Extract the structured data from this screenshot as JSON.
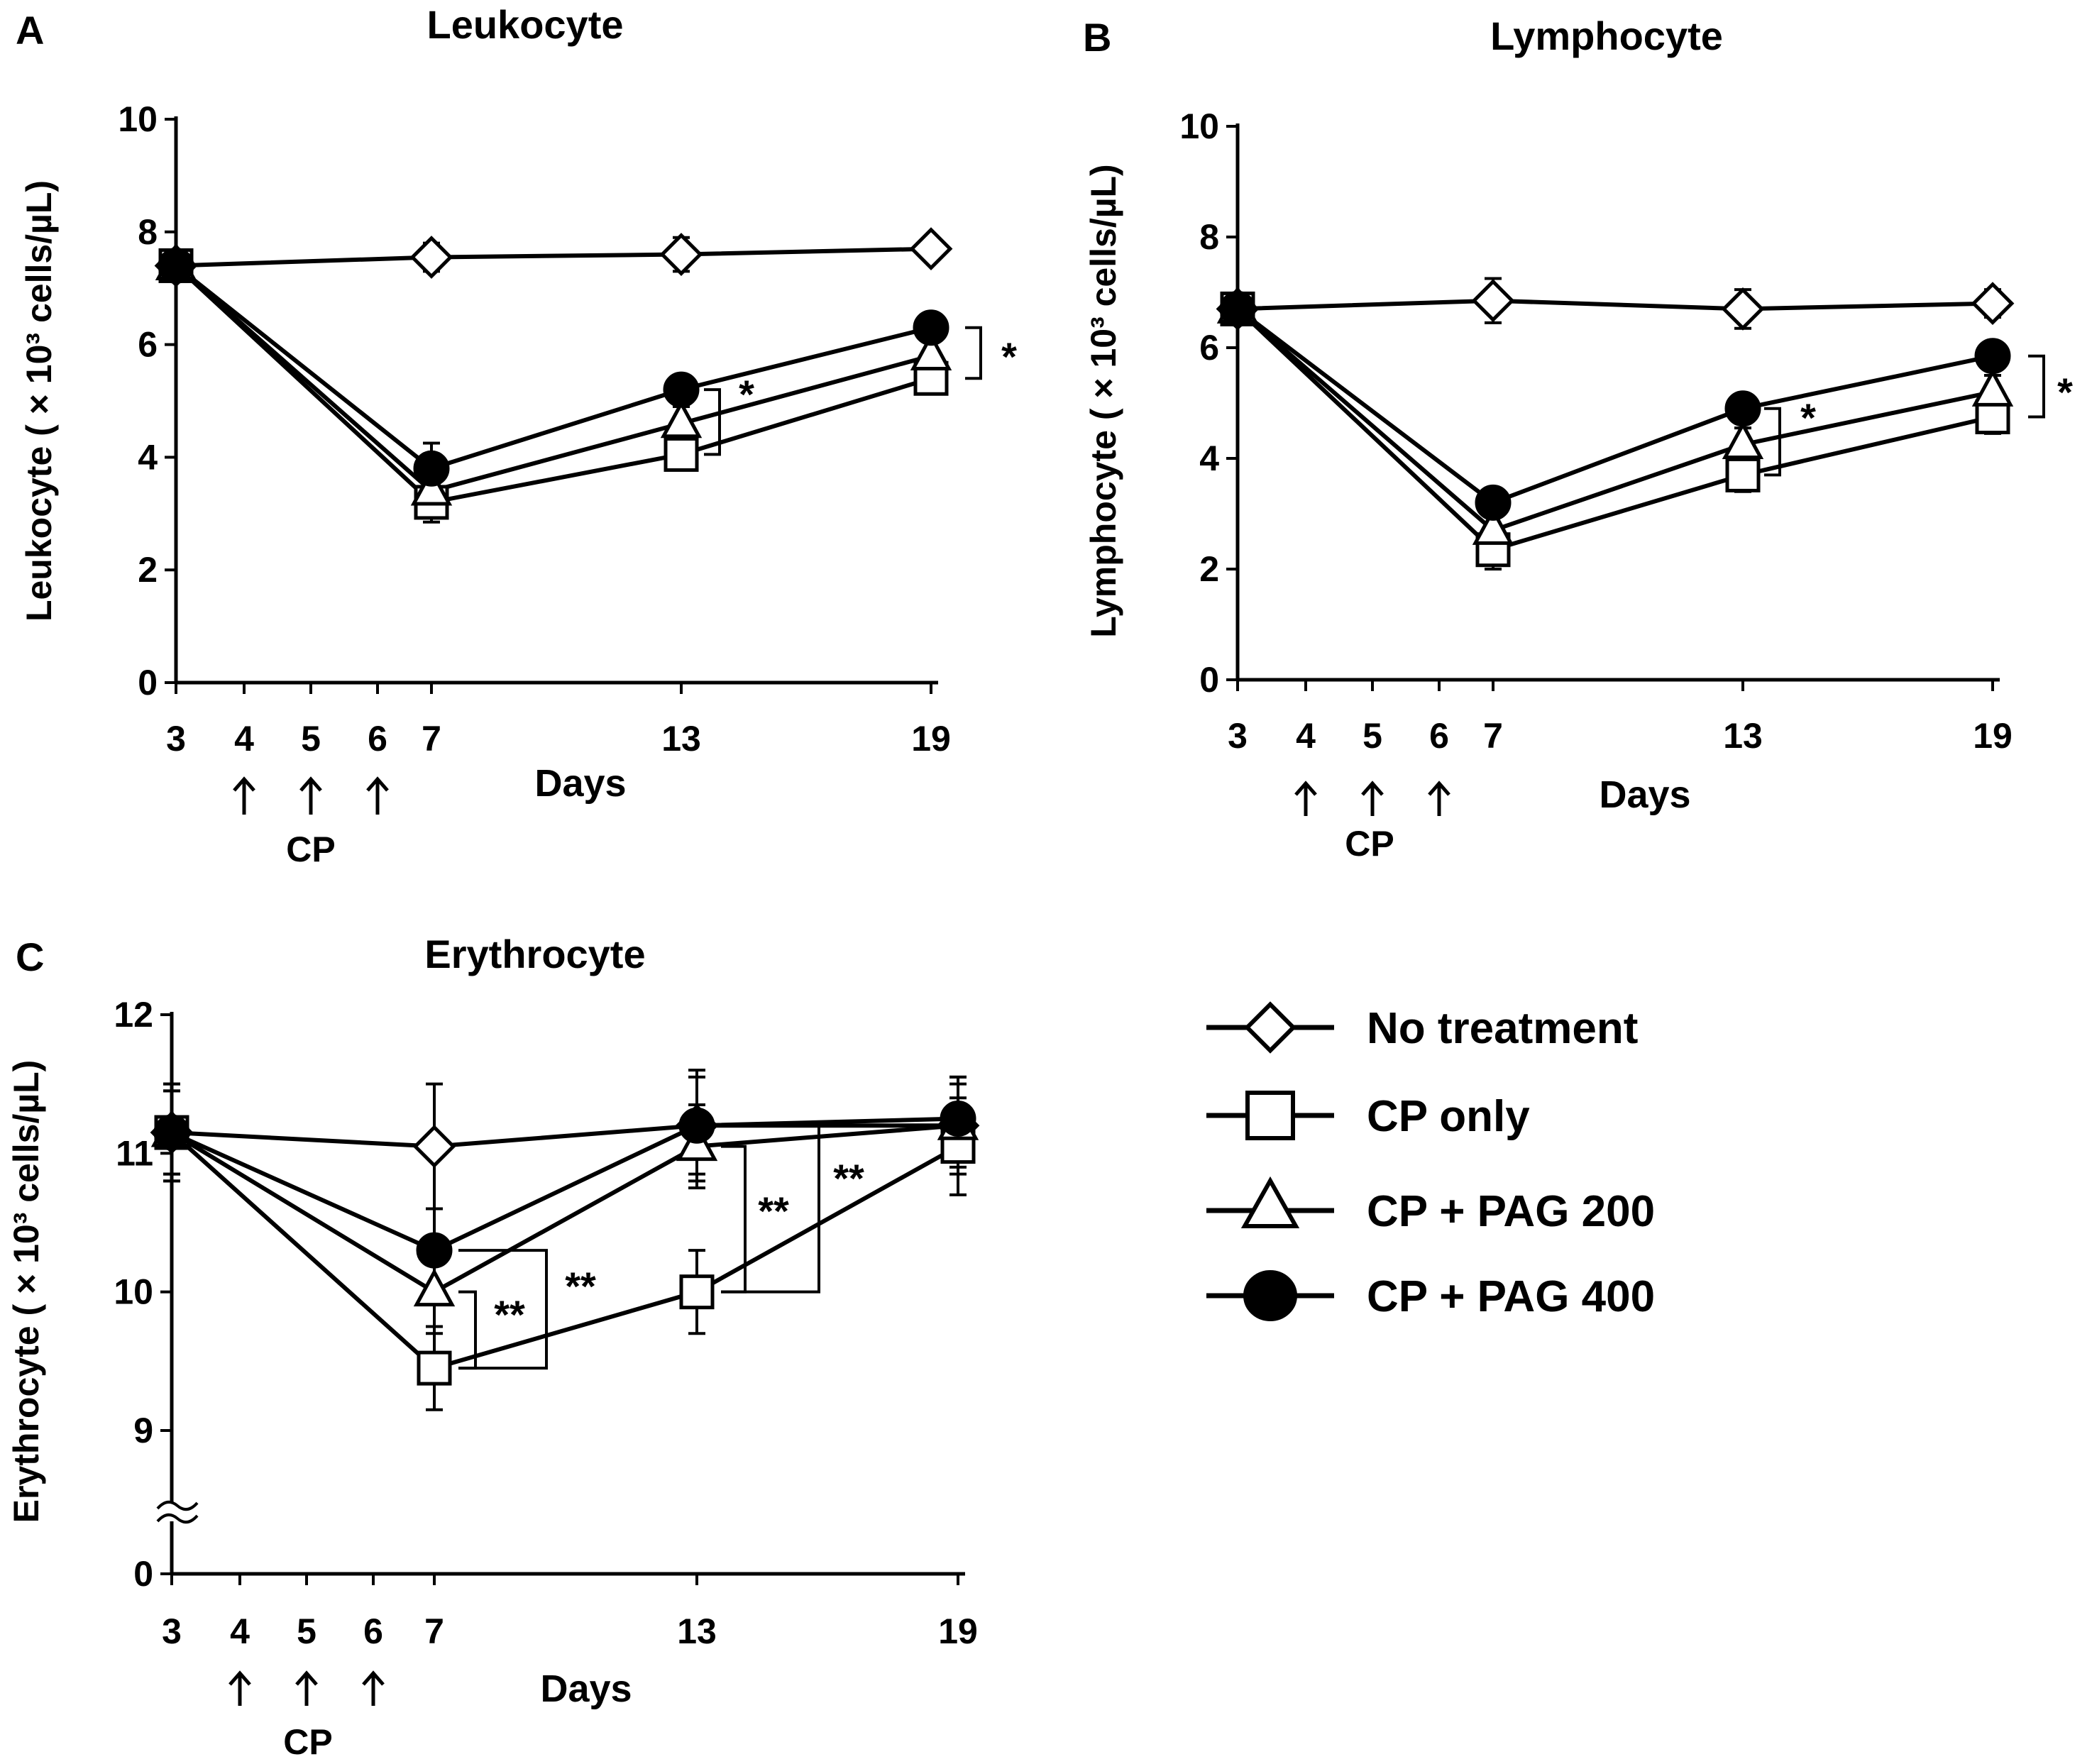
{
  "chart_data": [
    {
      "type": "line",
      "panel": "A",
      "title": "Leukocyte",
      "xlabel": "Days",
      "ylabel": "Leukocyte ( × 10³ cells/µL)",
      "x": [
        3,
        7,
        13,
        19
      ],
      "x_ticks": [
        "3",
        "4",
        "5",
        "6",
        "7",
        "13",
        "19"
      ],
      "y_ticks": [
        "0",
        "2",
        "4",
        "6",
        "8",
        "10"
      ],
      "ylim": [
        0,
        10
      ],
      "arrow_days": [
        4,
        5,
        6
      ],
      "arrow_label": "CP",
      "series": [
        {
          "name": "No treatment",
          "values": [
            7.4,
            7.55,
            7.6,
            7.7
          ],
          "errors": [
            0.15,
            0.25,
            0.3,
            0.2
          ]
        },
        {
          "name": "CP only",
          "values": [
            7.4,
            3.2,
            4.05,
            5.4
          ],
          "errors": [
            0.15,
            0.35,
            0.25,
            0.2
          ]
        },
        {
          "name": "CP + PAG 200",
          "values": [
            7.4,
            3.4,
            4.6,
            5.8
          ],
          "errors": [
            0.15,
            0.3,
            0.3,
            0.25
          ]
        },
        {
          "name": "CP + PAG 400",
          "values": [
            7.4,
            3.8,
            5.2,
            6.3
          ],
          "errors": [
            0.15,
            0.45,
            0.25,
            0.25
          ]
        }
      ],
      "significance": [
        {
          "label": "*",
          "x": 13
        },
        {
          "label": "*",
          "x": 19
        }
      ]
    },
    {
      "type": "line",
      "panel": "B",
      "title": "Lymphocyte",
      "xlabel": "Days",
      "ylabel": "Lymphocyte ( × 10³ cells/µL)",
      "x": [
        3,
        7,
        13,
        19
      ],
      "x_ticks": [
        "3",
        "4",
        "5",
        "6",
        "7",
        "13",
        "19"
      ],
      "y_ticks": [
        "0",
        "2",
        "4",
        "6",
        "8",
        "10"
      ],
      "ylim": [
        0,
        10
      ],
      "arrow_days": [
        4,
        5,
        6
      ],
      "arrow_label": "CP",
      "series": [
        {
          "name": "No treatment",
          "values": [
            6.7,
            6.85,
            6.7,
            6.8
          ],
          "errors": [
            0.15,
            0.4,
            0.35,
            0.25
          ]
        },
        {
          "name": "CP only",
          "values": [
            6.7,
            2.35,
            3.7,
            4.75
          ],
          "errors": [
            0.15,
            0.35,
            0.3,
            0.3
          ]
        },
        {
          "name": "CP + PAG 200",
          "values": [
            6.7,
            2.7,
            4.25,
            5.2
          ],
          "errors": [
            0.15,
            0.3,
            0.3,
            0.3
          ]
        },
        {
          "name": "CP + PAG 400",
          "values": [
            6.7,
            3.2,
            4.9,
            5.85
          ],
          "errors": [
            0.15,
            0.25,
            0.25,
            0.25
          ]
        }
      ],
      "significance": [
        {
          "label": "*",
          "x": 13
        },
        {
          "label": "*",
          "x": 19
        }
      ]
    },
    {
      "type": "line",
      "panel": "C",
      "title": "Erythrocyte",
      "xlabel": "Days",
      "ylabel": "Erythrocyte ( × 10³ cells/µL)",
      "x": [
        3,
        7,
        13,
        19
      ],
      "x_ticks": [
        "3",
        "4",
        "5",
        "6",
        "7",
        "13",
        "19"
      ],
      "y_ticks": [
        "0",
        "9",
        "10",
        "11",
        "12"
      ],
      "ylim": [
        9,
        12
      ],
      "axis_break": true,
      "arrow_days": [
        4,
        5,
        6
      ],
      "arrow_label": "CP",
      "series": [
        {
          "name": "No treatment",
          "values": [
            11.15,
            11.05,
            11.2,
            11.2
          ],
          "errors": [
            0.35,
            0.45,
            0.4,
            0.35
          ]
        },
        {
          "name": "CP only",
          "values": [
            11.15,
            9.45,
            10.0,
            11.05
          ],
          "errors": [
            0.35,
            0.3,
            0.3,
            0.35
          ]
        },
        {
          "name": "CP + PAG 200",
          "values": [
            11.15,
            10.0,
            11.05,
            11.2
          ],
          "errors": [
            0.3,
            0.3,
            0.3,
            0.3
          ]
        },
        {
          "name": "CP + PAG 400",
          "values": [
            11.15,
            10.3,
            11.2,
            11.25
          ],
          "errors": [
            0.3,
            0.3,
            0.35,
            0.3
          ]
        }
      ],
      "significance": [
        {
          "label": "**",
          "x": 7,
          "pair": "inner"
        },
        {
          "label": "**",
          "x": 7,
          "pair": "outer"
        },
        {
          "label": "**",
          "x": 13,
          "pair": "inner"
        },
        {
          "label": "**",
          "x": 13,
          "pair": "outer"
        }
      ]
    }
  ],
  "legend": [
    {
      "label": "No treatment",
      "marker": "diamond-open"
    },
    {
      "label": "CP only",
      "marker": "square-open"
    },
    {
      "label": "CP + PAG 200",
      "marker": "triangle-open"
    },
    {
      "label": "CP + PAG 400",
      "marker": "circle-filled"
    }
  ]
}
